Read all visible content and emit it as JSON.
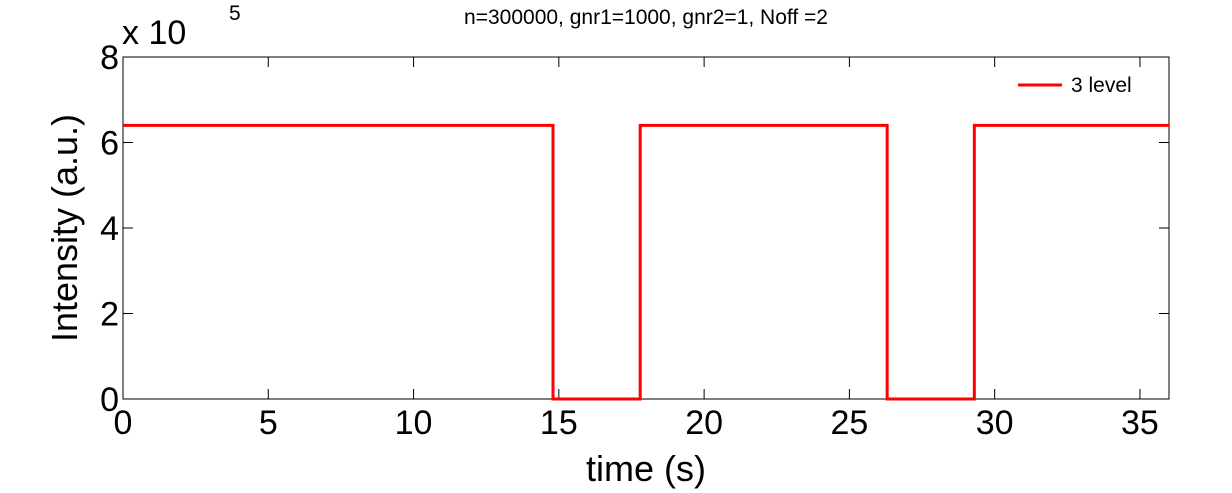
{
  "chart_data": {
    "type": "line",
    "title": "n=300000, gnr1=1000, gnr2=1, Noff =2",
    "xlabel": "time (s)",
    "ylabel": "Intensity (a.u.)",
    "xlim": [
      0,
      36
    ],
    "ylim": [
      0,
      800000
    ],
    "y_multiplier": {
      "base": "x 10",
      "exponent": "5"
    },
    "x_ticks": [
      {
        "value": 0,
        "label": "0"
      },
      {
        "value": 5,
        "label": "5"
      },
      {
        "value": 10,
        "label": "10"
      },
      {
        "value": 15,
        "label": "15"
      },
      {
        "value": 20,
        "label": "20"
      },
      {
        "value": 25,
        "label": "25"
      },
      {
        "value": 30,
        "label": "30"
      },
      {
        "value": 35,
        "label": "35"
      }
    ],
    "y_ticks": [
      {
        "value": 0,
        "label": "0"
      },
      {
        "value": 200000,
        "label": "2"
      },
      {
        "value": 400000,
        "label": "4"
      },
      {
        "value": 600000,
        "label": "6"
      },
      {
        "value": 800000,
        "label": "8"
      }
    ],
    "grid": false,
    "legend_position": "top-right",
    "series": [
      {
        "name": "3 level",
        "color": "#ff0000",
        "x": [
          0,
          14.8,
          14.8,
          17.8,
          17.8,
          26.3,
          26.3,
          29.3,
          29.3,
          36
        ],
        "y": [
          640000,
          640000,
          0,
          0,
          640000,
          640000,
          0,
          0,
          640000,
          640000
        ]
      }
    ]
  }
}
